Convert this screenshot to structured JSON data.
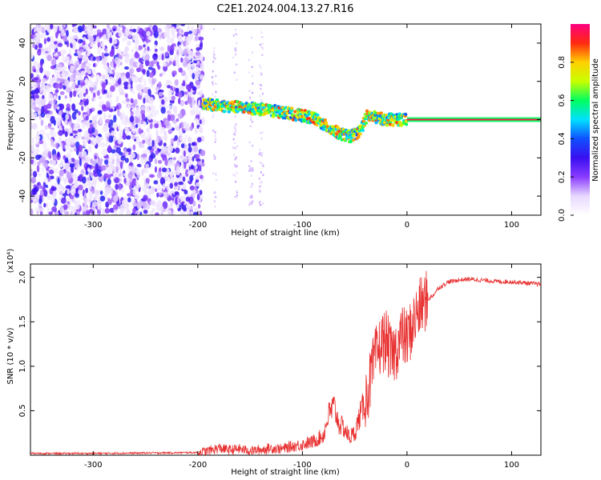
{
  "title": "C2E1.2024.004.13.27.R16",
  "chart_data": [
    {
      "type": "heatmap",
      "xlabel": "Height of straight line (km)",
      "ylabel": "Frequency (Hz)",
      "xlim": [
        -360,
        128
      ],
      "ylim": [
        -50,
        50
      ],
      "xticks": [
        -300,
        -200,
        -100,
        0,
        100
      ],
      "yticks": [
        -40,
        -20,
        0,
        20,
        40
      ],
      "colorbar": {
        "label": "Normalized spectral amplitude",
        "range": [
          0,
          1
        ],
        "ticks": [
          0.0,
          0.2,
          0.4,
          0.6,
          0.8
        ],
        "tick_labels": [
          "0.0",
          "0.2",
          "0.4",
          "0.6",
          "0.8"
        ],
        "colors": [
          "#ffffff",
          "#e8d8ff",
          "#8a3cff",
          "#3a0ff0",
          "#1050ff",
          "#00e0ff",
          "#00ff60",
          "#c8ff00",
          "#ffd000",
          "#ff2a10",
          "#ff0080"
        ]
      },
      "features": {
        "noise_region": {
          "x": [
            -360,
            -195
          ],
          "y": [
            -50,
            50
          ],
          "amplitude": [
            0.05,
            0.35
          ]
        },
        "signal_trace": [
          {
            "x": -195,
            "y": 8
          },
          {
            "x": -150,
            "y": 6
          },
          {
            "x": -120,
            "y": 4
          },
          {
            "x": -90,
            "y": 1
          },
          {
            "x": -70,
            "y": -6
          },
          {
            "x": -55,
            "y": -9
          },
          {
            "x": -45,
            "y": -6
          },
          {
            "x": -38,
            "y": 2
          },
          {
            "x": -20,
            "y": 0
          },
          {
            "x": 0,
            "y": 0
          },
          {
            "x": 128,
            "y": 0
          }
        ],
        "carrier_line": {
          "x": [
            0,
            128
          ],
          "y": 0,
          "amplitude": 0.95
        }
      }
    },
    {
      "type": "line",
      "xlabel": "Height of straight line (km)",
      "ylabel": "SNR (10 * v/v)",
      "scale_label": "(x10⁴)",
      "xlim": [
        -360,
        128
      ],
      "ylim": [
        0,
        2.15
      ],
      "xticks": [
        -300,
        -200,
        -100,
        0,
        100
      ],
      "yticks": [
        0.5,
        1.0,
        1.5,
        2.0
      ],
      "ytick_labels": [
        "0.5",
        "1.0",
        "1.5",
        "2.0"
      ],
      "color": "#e83030",
      "x": [
        -360,
        -300,
        -250,
        -200,
        -190,
        -180,
        -170,
        -160,
        -150,
        -140,
        -130,
        -120,
        -110,
        -100,
        -90,
        -80,
        -75,
        -70,
        -65,
        -60,
        -55,
        -50,
        -45,
        -40,
        -35,
        -30,
        -25,
        -20,
        -15,
        -10,
        -5,
        0,
        5,
        10,
        15,
        20,
        25,
        30,
        40,
        50,
        60,
        70,
        80,
        90,
        100,
        110,
        120,
        128
      ],
      "y": [
        0.02,
        0.02,
        0.025,
        0.03,
        0.05,
        0.08,
        0.06,
        0.07,
        0.05,
        0.06,
        0.08,
        0.07,
        0.1,
        0.12,
        0.15,
        0.22,
        0.45,
        0.55,
        0.35,
        0.3,
        0.2,
        0.25,
        0.45,
        0.6,
        0.85,
        1.1,
        1.25,
        1.3,
        1.1,
        1.2,
        1.35,
        1.3,
        1.45,
        1.6,
        1.7,
        1.75,
        1.8,
        1.88,
        1.95,
        1.97,
        1.98,
        1.97,
        1.96,
        1.95,
        1.95,
        1.94,
        1.93,
        1.92
      ]
    }
  ]
}
